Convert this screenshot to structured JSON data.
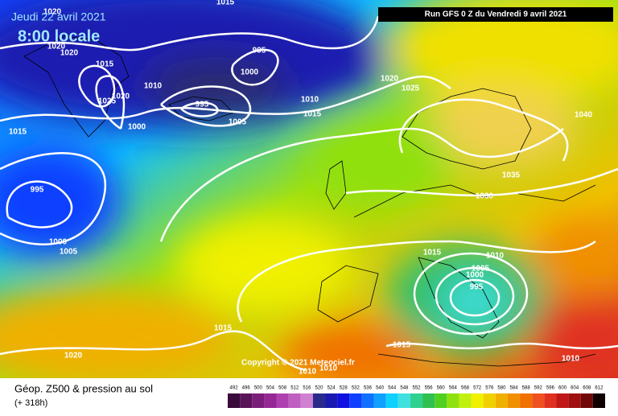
{
  "header": {
    "date": "Jeudi 22 avril 2021",
    "time": "8:00 locale",
    "run": "Run GFS 0 Z du Vendredi 9 avril 2021"
  },
  "map": {
    "copyright": "Copyright © 2021 Meteociel.fr",
    "isobar_labels": [
      "1015",
      "1020",
      "1020",
      "1020",
      "1015",
      "995",
      "1000",
      "1010",
      "1025",
      "1020",
      "995",
      "1010",
      "1015",
      "1005",
      "1000",
      "1015",
      "1020",
      "1025",
      "1040",
      "1035",
      "1030",
      "995",
      "1000",
      "1005",
      "1015",
      "1010",
      "1005",
      "1000",
      "995",
      "1015",
      "1015",
      "1020",
      "1010",
      "1010",
      "1010"
    ]
  },
  "footer": {
    "title": "Géop. Z500 & pression au sol",
    "subtitle": "(+ 318h)"
  },
  "legend": {
    "values": [
      492,
      496,
      500,
      504,
      508,
      512,
      516,
      520,
      524,
      528,
      532,
      536,
      540,
      544,
      548,
      552,
      556,
      560,
      564,
      568,
      572,
      576,
      580,
      584,
      588,
      592,
      596,
      600,
      604,
      608,
      612
    ],
    "colors": [
      "#3a0a3a",
      "#5a145a",
      "#7a1e7a",
      "#962896",
      "#b040b0",
      "#c060c0",
      "#d080d0",
      "#2a2a8a",
      "#1a1ab0",
      "#1010e0",
      "#1040ff",
      "#1070ff",
      "#10a0ff",
      "#10d0ff",
      "#40e0e0",
      "#30d090",
      "#30c050",
      "#50d020",
      "#90e010",
      "#c0f010",
      "#f0f000",
      "#f0d000",
      "#f0b000",
      "#f09000",
      "#f07000",
      "#f05020",
      "#e03020",
      "#c01818",
      "#a01010",
      "#700808",
      "#100000"
    ]
  }
}
